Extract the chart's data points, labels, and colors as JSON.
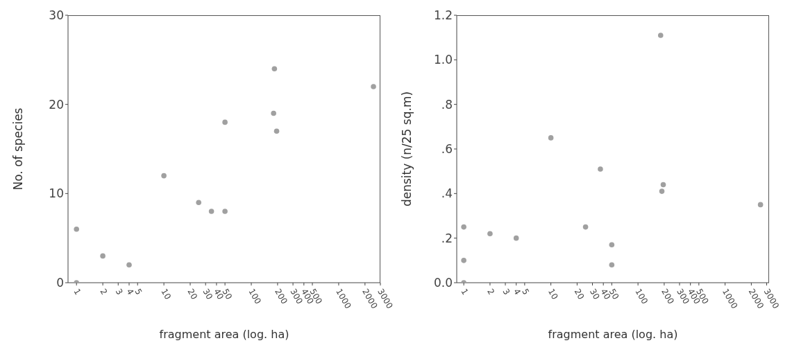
{
  "chart_data": [
    {
      "type": "scatter",
      "xlabel": "fragment area (log. ha)",
      "ylabel": "No. of species",
      "log": "x",
      "grid": false,
      "marker": "circle",
      "color": "#a0a0a0",
      "x": [
        1,
        1,
        2,
        4,
        10,
        25,
        35,
        50,
        50,
        180,
        184,
        195,
        2500
      ],
      "values": [
        0,
        6,
        3,
        2,
        12,
        9,
        8,
        8,
        18,
        19,
        24,
        17,
        22
      ],
      "xlim": [
        0.8,
        3000
      ],
      "xticks": [
        1,
        2,
        3,
        4,
        5,
        10,
        20,
        30,
        40,
        50,
        100,
        200,
        300,
        400,
        500,
        1000,
        2000,
        3000
      ],
      "ylim": [
        0,
        30
      ],
      "yticks": [
        0,
        10,
        20,
        30
      ]
    },
    {
      "type": "scatter",
      "xlabel": "fragment area (log. ha)",
      "ylabel": "density  (n/25 sq.m)",
      "log": "x",
      "grid": false,
      "marker": "circle",
      "color": "#a0a0a0",
      "x": [
        1,
        1,
        1,
        2,
        4,
        10,
        25,
        37,
        50,
        50,
        182,
        188,
        195,
        2550
      ],
      "values": [
        0.0,
        0.1,
        0.25,
        0.22,
        0.2,
        0.65,
        0.25,
        0.51,
        0.17,
        0.08,
        1.11,
        0.41,
        0.44,
        0.35
      ],
      "xlim": [
        0.83,
        3200
      ],
      "xticks": [
        1,
        2,
        3,
        4,
        5,
        10,
        20,
        30,
        40,
        50,
        100,
        200,
        300,
        400,
        500,
        1000,
        2000,
        3000
      ],
      "ylim": [
        0,
        1.2
      ],
      "yticks": [
        {
          "value": 0,
          "label": "0.0"
        },
        {
          "value": 0.2,
          "label": ".2"
        },
        {
          "value": 0.4,
          "label": ".4"
        },
        {
          "value": 0.6,
          "label": ".6"
        },
        {
          "value": 0.8,
          "label": ".8"
        },
        {
          "value": 1.0,
          "label": "1.0"
        },
        {
          "value": 1.2,
          "label": "1.2"
        }
      ]
    }
  ]
}
